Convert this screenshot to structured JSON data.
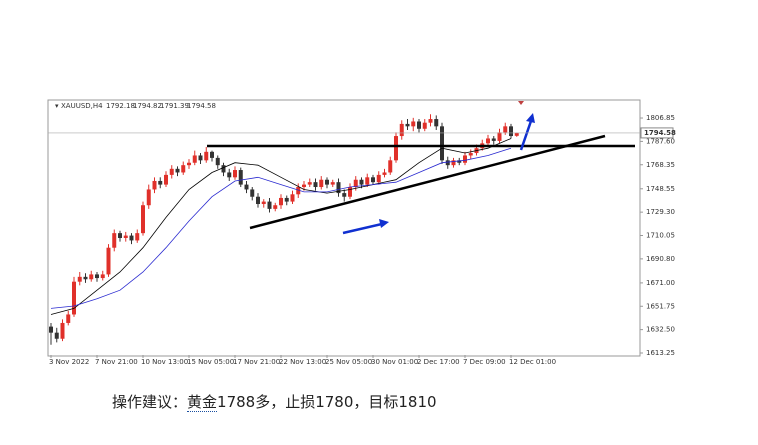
{
  "chart_data": {
    "type": "candlestick",
    "symbol": "XAUUSD,H4",
    "categories": [
      "3 Nov 2022",
      null,
      null,
      null,
      null,
      null,
      null,
      null,
      "7 Nov 21:00",
      null,
      null,
      null,
      null,
      null,
      null,
      null,
      "10 Nov 13:00",
      null,
      null,
      null,
      null,
      null,
      null,
      null,
      "15 Nov 05:00",
      null,
      null,
      null,
      null,
      null,
      null,
      null,
      "17 Nov 21:00",
      null,
      null,
      null,
      null,
      null,
      null,
      null,
      "22 Nov 13:00",
      null,
      null,
      null,
      null,
      null,
      null,
      null,
      "25 Nov 05:00",
      null,
      null,
      null,
      null,
      null,
      null,
      null,
      "30 Nov 01:00",
      null,
      null,
      null,
      null,
      null,
      null,
      null,
      "2 Dec 17:00",
      null,
      null,
      null,
      null,
      null,
      null,
      null,
      "7 Dec 09:00",
      null,
      null,
      null,
      null,
      null,
      null,
      null,
      "12 Dec 01:00",
      null
    ],
    "open": [
      1635,
      1630,
      1625,
      1638,
      1645,
      1672,
      1676,
      1674,
      1678,
      1675,
      1678,
      1700,
      1712,
      1708,
      1710,
      1706,
      1712,
      1735,
      1748,
      1755,
      1752,
      1760,
      1765,
      1762,
      1768,
      1770,
      1776,
      1772,
      1779,
      1774,
      1768,
      1762,
      1758,
      1764,
      1752,
      1748,
      1742,
      1736,
      1738,
      1732,
      1735,
      1741,
      1738,
      1744,
      1750,
      1752,
      1754,
      1750,
      1756,
      1752,
      1754,
      1745,
      1742,
      1750,
      1756,
      1752,
      1758,
      1754,
      1760,
      1762,
      1772,
      1792,
      1802,
      1800,
      1804,
      1798,
      1803,
      1806,
      1800,
      1772,
      1768,
      1772,
      1770,
      1776,
      1778,
      1782,
      1786,
      1790,
      1788,
      1795,
      1800,
      1792.18
    ],
    "high": [
      1638,
      1634,
      1641,
      1648,
      1676,
      1680,
      1679,
      1681,
      1680,
      1681,
      1703,
      1715,
      1714,
      1713,
      1712,
      1715,
      1738,
      1752,
      1758,
      1758,
      1763,
      1768,
      1767,
      1771,
      1773,
      1780,
      1778,
      1783,
      1780,
      1776,
      1770,
      1765,
      1767,
      1766,
      1755,
      1750,
      1745,
      1740,
      1741,
      1737,
      1744,
      1743,
      1747,
      1753,
      1755,
      1757,
      1757,
      1759,
      1758,
      1756,
      1757,
      1748,
      1753,
      1759,
      1758,
      1761,
      1760,
      1763,
      1765,
      1775,
      1795,
      1805,
      1806,
      1807,
      1806,
      1806,
      1810,
      1809,
      1803,
      1775,
      1774,
      1774,
      1779,
      1781,
      1785,
      1789,
      1793,
      1792,
      1798,
      1803,
      1802,
      1794.82
    ],
    "low": [
      1620,
      1622,
      1623,
      1636,
      1643,
      1669,
      1671,
      1672,
      1672,
      1673,
      1676,
      1697,
      1705,
      1705,
      1703,
      1704,
      1710,
      1732,
      1745,
      1749,
      1750,
      1757,
      1759,
      1760,
      1765,
      1768,
      1769,
      1770,
      1771,
      1765,
      1759,
      1755,
      1756,
      1750,
      1745,
      1739,
      1733,
      1733,
      1729,
      1730,
      1732,
      1735,
      1736,
      1741,
      1747,
      1750,
      1747,
      1748,
      1749,
      1750,
      1742,
      1738,
      1740,
      1747,
      1749,
      1750,
      1752,
      1752,
      1758,
      1760,
      1770,
      1789,
      1797,
      1796,
      1795,
      1796,
      1800,
      1797,
      1769,
      1765,
      1766,
      1768,
      1768,
      1773,
      1776,
      1780,
      1784,
      1785,
      1786,
      1793,
      1790,
      1791.39
    ],
    "close": [
      1630,
      1625,
      1638,
      1645,
      1672,
      1676,
      1674,
      1678,
      1675,
      1678,
      1700,
      1712,
      1708,
      1710,
      1706,
      1712,
      1735,
      1748,
      1755,
      1752,
      1760,
      1765,
      1762,
      1768,
      1770,
      1776,
      1772,
      1779,
      1774,
      1768,
      1762,
      1758,
      1764,
      1752,
      1748,
      1742,
      1736,
      1738,
      1732,
      1735,
      1741,
      1738,
      1744,
      1750,
      1752,
      1754,
      1750,
      1756,
      1752,
      1754,
      1745,
      1742,
      1750,
      1756,
      1752,
      1758,
      1754,
      1760,
      1762,
      1772,
      1792,
      1802,
      1800,
      1804,
      1798,
      1803,
      1806,
      1800,
      1772,
      1768,
      1772,
      1770,
      1776,
      1778,
      1782,
      1786,
      1790,
      1788,
      1795,
      1800,
      1792,
      1794.58
    ],
    "up_color": "#e0302a",
    "down_color": "#333333",
    "series": [
      {
        "color": "#000000",
        "x": [
          0,
          4,
          8,
          12,
          16,
          20,
          24,
          28,
          32,
          36,
          40,
          44,
          48,
          52,
          56,
          60,
          64,
          68,
          72,
          76,
          80
        ],
        "values": [
          1645,
          1650,
          1665,
          1680,
          1700,
          1725,
          1748,
          1762,
          1770,
          1768,
          1758,
          1748,
          1745,
          1748,
          1752,
          1756,
          1770,
          1782,
          1778,
          1782,
          1790
        ]
      },
      {
        "color": "#2a2ad0",
        "x": [
          0,
          4,
          8,
          12,
          16,
          20,
          24,
          28,
          32,
          36,
          40,
          44,
          48,
          52,
          56,
          60,
          64,
          68,
          72,
          76,
          80
        ],
        "values": [
          1650,
          1652,
          1658,
          1665,
          1680,
          1700,
          1722,
          1742,
          1755,
          1758,
          1752,
          1746,
          1746,
          1750,
          1752,
          1754,
          1762,
          1770,
          1772,
          1776,
          1782
        ]
      }
    ],
    "ylim": [
      1611.6,
      1821.7
    ],
    "yticks": [
      1806.85,
      {
        "value": 1787.6,
        "label": "1787.60"
      },
      1768.35,
      1748.55,
      {
        "value": 1729.3,
        "label": "1729.30"
      },
      1710.05,
      {
        "value": 1690.8,
        "label": "1690.80"
      },
      {
        "value": 1671,
        "label": "1671.00"
      },
      1651.75,
      {
        "value": 1632.5,
        "label": "1632.50"
      },
      1613.25
    ]
  },
  "caption": {
    "prefix": "操作建议：",
    "keyword": "黄金",
    "suffix": "1788多，止损1780，目标1810"
  }
}
